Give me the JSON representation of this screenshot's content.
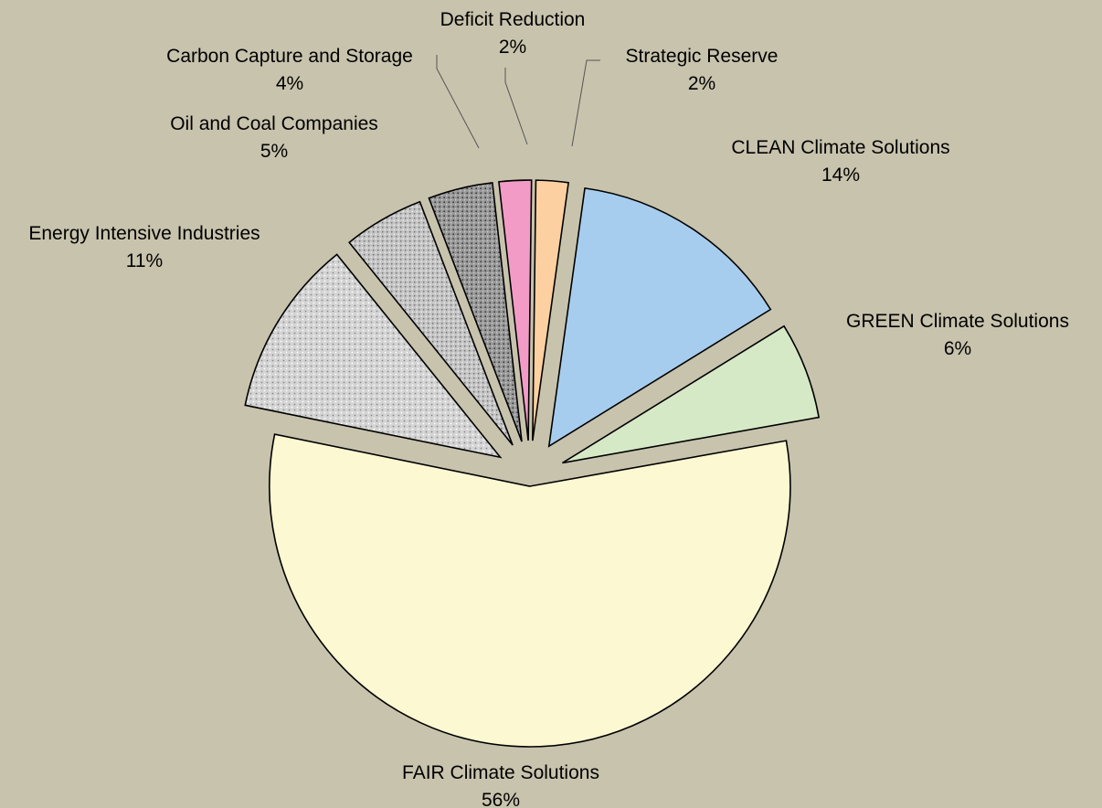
{
  "chart_data": {
    "type": "pie",
    "title": "",
    "legend": "none",
    "exploded": true,
    "slices": [
      {
        "label": "CLEAN Climate Solutions",
        "value": 14,
        "value_label": "14%",
        "color": "#a7cdee",
        "pattern": "solid"
      },
      {
        "label": "GREEN Climate Solutions",
        "value": 6,
        "value_label": "6%",
        "color": "#d6e9c6",
        "pattern": "solid"
      },
      {
        "label": "FAIR Climate Solutions",
        "value": 56,
        "value_label": "56%",
        "color": "#fbf8d2",
        "pattern": "solid"
      },
      {
        "label": "Energy Intensive Industries",
        "value": 11,
        "value_label": "11%",
        "color": "#d2d2d2",
        "pattern": "dots-light"
      },
      {
        "label": "Oil and Coal Companies",
        "value": 5,
        "value_label": "5%",
        "color": "#c6c6c6",
        "pattern": "dots-medium"
      },
      {
        "label": "Carbon Capture and Storage",
        "value": 4,
        "value_label": "4%",
        "color": "#9c9c9c",
        "pattern": "dots-dark"
      },
      {
        "label": "Deficit Reduction",
        "value": 2,
        "value_label": "2%",
        "color": "#f29bc7",
        "pattern": "solid"
      },
      {
        "label": "Strategic Reserve",
        "value": 2,
        "value_label": "2%",
        "color": "#fcd0a0",
        "pattern": "solid"
      }
    ]
  }
}
